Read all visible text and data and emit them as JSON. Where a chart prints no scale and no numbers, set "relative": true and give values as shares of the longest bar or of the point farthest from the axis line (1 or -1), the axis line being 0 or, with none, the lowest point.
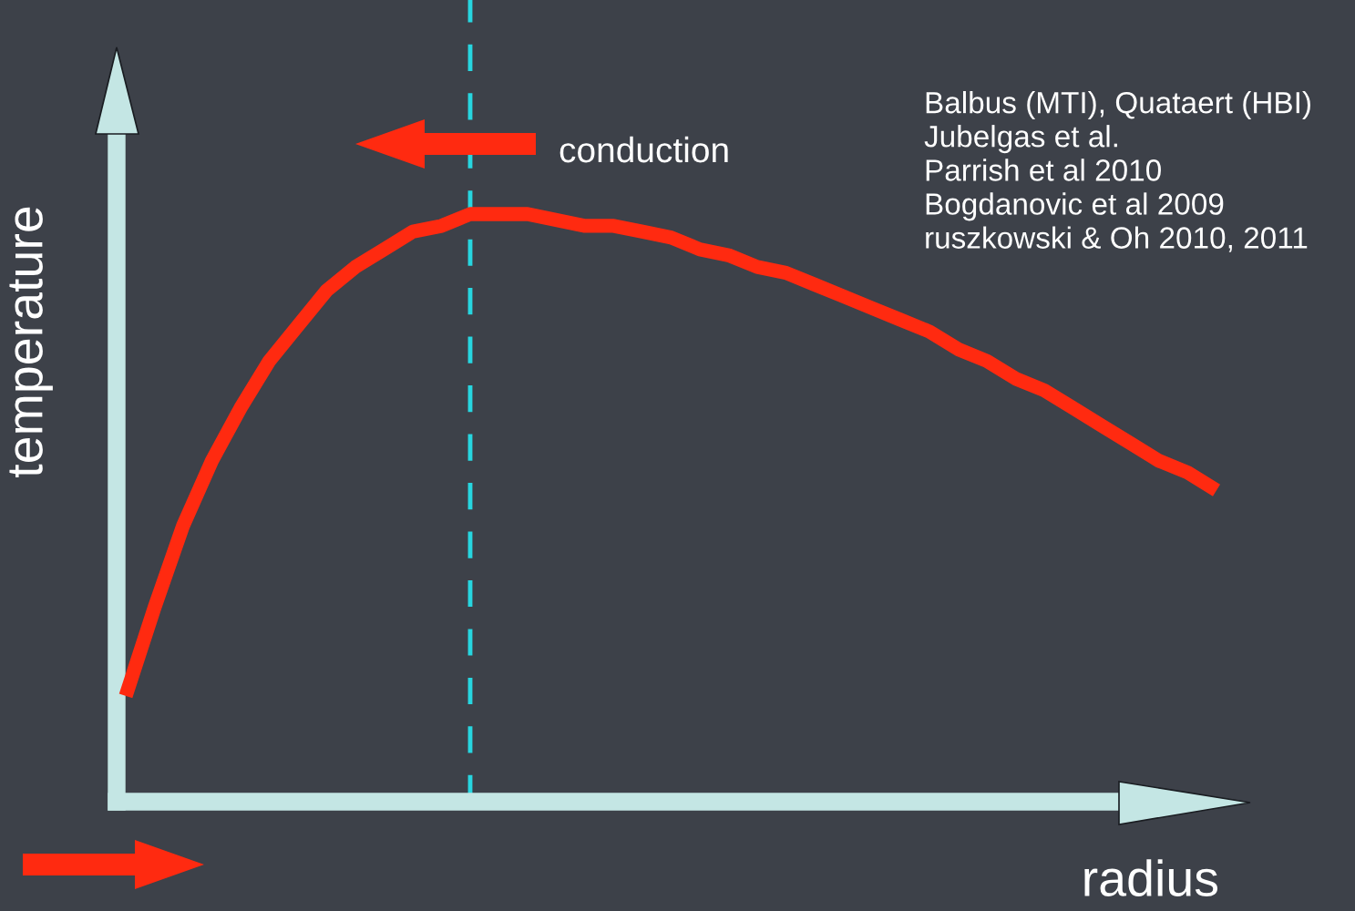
{
  "chart_data": {
    "type": "line",
    "relative": true,
    "xlabel": "radius",
    "ylabel": "temperature",
    "categories": [
      null,
      null,
      null,
      null,
      null,
      null,
      null,
      null,
      null,
      null,
      null,
      null,
      null,
      null,
      null,
      null,
      null,
      null,
      null,
      null,
      null,
      null,
      null,
      null,
      null,
      null,
      null,
      null,
      null,
      null,
      null,
      null,
      null,
      null,
      null,
      null,
      null,
      null,
      null
    ],
    "series": [
      {
        "color": "#ff2a10",
        "values": [
          0.18,
          0.33,
          0.47,
          0.58,
          0.67,
          0.75,
          0.81,
          0.87,
          0.91,
          0.94,
          0.97,
          0.98,
          1.0,
          1.0,
          1.0,
          0.99,
          0.98,
          0.98,
          0.97,
          0.96,
          0.94,
          0.93,
          0.91,
          0.9,
          0.88,
          0.86,
          0.84,
          0.82,
          0.8,
          0.77,
          0.75,
          0.72,
          0.7,
          0.67,
          0.64,
          0.61,
          0.58,
          0.56,
          0.53
        ]
      }
    ],
    "annotations": [
      "conduction",
      "Balbus (MTI), Quataert (HBI)\nJubelgas et al.\nParrish et al 2010\nBogdanovic et al 2009\nruszkowski & Oh 2010, 2011"
    ],
    "legend": false
  }
}
